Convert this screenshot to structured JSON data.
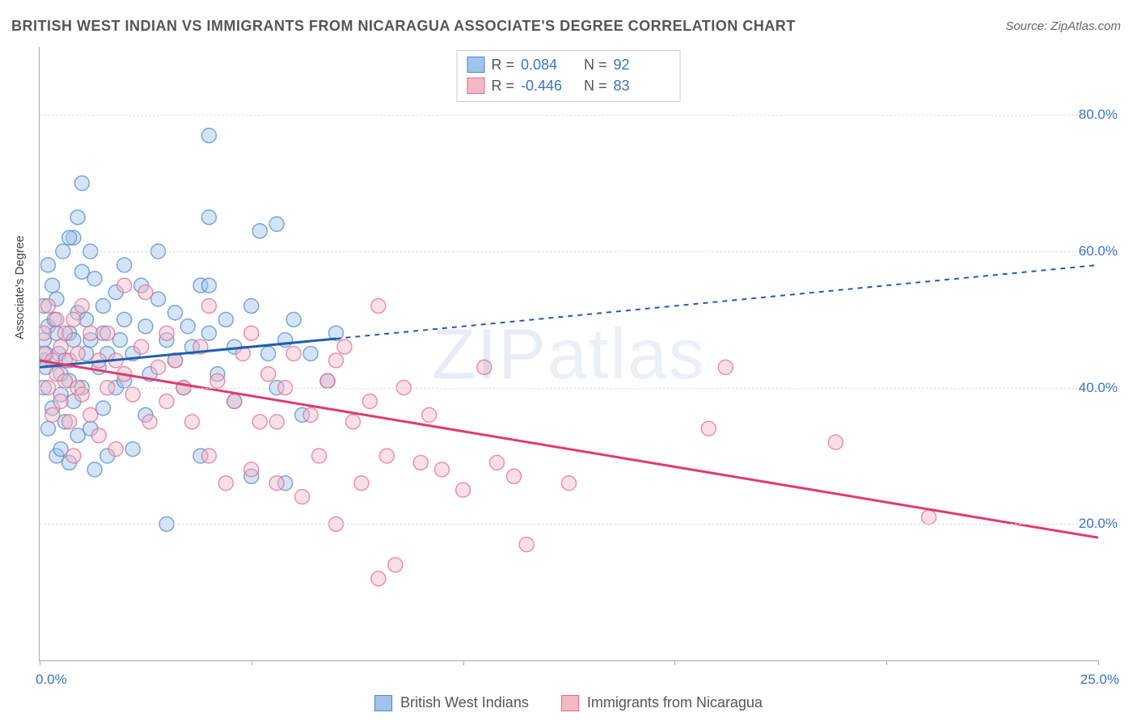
{
  "title": "BRITISH WEST INDIAN VS IMMIGRANTS FROM NICARAGUA ASSOCIATE'S DEGREE CORRELATION CHART",
  "source": "Source: ZipAtlas.com",
  "watermark": "ZIPatlas",
  "chart": {
    "type": "scatter",
    "ylabel": "Associate's Degree",
    "background_color": "#ffffff",
    "grid_color": "#dddddd",
    "axis_color": "#aaaaaa",
    "tick_label_color": "#3a74c4",
    "xlim": [
      0,
      25
    ],
    "ylim": [
      0,
      90
    ],
    "x_ticks": [
      0,
      5,
      10,
      15,
      20,
      25
    ],
    "x_tick_labels": [
      "0.0%",
      "25.0%"
    ],
    "y_ticks": [
      20,
      40,
      60,
      80
    ],
    "y_tick_labels": [
      "20.0%",
      "40.0%",
      "60.0%",
      "80.0%"
    ],
    "marker_radius": 9,
    "marker_opacity": 0.45,
    "trend_line_width": 3,
    "trend_dash_extrapolate": "6,6",
    "series": [
      {
        "name": "British West Indians",
        "fill": "#9ec4ea",
        "stroke": "#4f86c6",
        "line_color": "#1f5fb0",
        "r": 0.084,
        "r_label": "0.084",
        "n": 92,
        "trend": {
          "x1": 0,
          "y1": 43,
          "x2": 25,
          "y2": 58,
          "solid_until_x": 7
        },
        "points": [
          [
            0.1,
            47
          ],
          [
            0.1,
            44
          ],
          [
            0.1,
            52
          ],
          [
            0.1,
            40
          ],
          [
            0.2,
            49
          ],
          [
            0.2,
            34
          ],
          [
            0.2,
            58
          ],
          [
            0.15,
            45
          ],
          [
            0.15,
            43
          ],
          [
            0.3,
            37
          ],
          [
            0.3,
            55
          ],
          [
            0.35,
            50
          ],
          [
            0.4,
            48
          ],
          [
            0.4,
            53
          ],
          [
            0.4,
            30
          ],
          [
            0.45,
            45
          ],
          [
            0.5,
            31
          ],
          [
            0.5,
            42
          ],
          [
            0.5,
            39
          ],
          [
            0.55,
            60
          ],
          [
            0.6,
            35
          ],
          [
            0.6,
            44
          ],
          [
            0.7,
            48
          ],
          [
            0.7,
            41
          ],
          [
            0.7,
            29
          ],
          [
            0.8,
            47
          ],
          [
            0.8,
            62
          ],
          [
            0.8,
            38
          ],
          [
            0.9,
            51
          ],
          [
            0.9,
            33
          ],
          [
            1.0,
            40
          ],
          [
            1.0,
            70
          ],
          [
            1.0,
            57
          ],
          [
            1.1,
            50
          ],
          [
            1.1,
            45
          ],
          [
            1.2,
            60
          ],
          [
            1.2,
            34
          ],
          [
            1.3,
            56
          ],
          [
            1.3,
            28
          ],
          [
            1.4,
            43
          ],
          [
            1.5,
            52
          ],
          [
            1.5,
            48
          ],
          [
            1.5,
            37
          ],
          [
            1.6,
            45
          ],
          [
            1.6,
            30
          ],
          [
            1.8,
            54
          ],
          [
            1.8,
            40
          ],
          [
            1.9,
            47
          ],
          [
            2.0,
            58
          ],
          [
            2.0,
            41
          ],
          [
            2.0,
            50
          ],
          [
            2.2,
            31
          ],
          [
            2.2,
            45
          ],
          [
            2.4,
            55
          ],
          [
            2.5,
            49
          ],
          [
            2.5,
            36
          ],
          [
            2.6,
            42
          ],
          [
            2.8,
            53
          ],
          [
            2.8,
            60
          ],
          [
            3.0,
            20
          ],
          [
            3.0,
            47
          ],
          [
            3.2,
            44
          ],
          [
            3.2,
            51
          ],
          [
            3.4,
            40
          ],
          [
            3.5,
            49
          ],
          [
            3.6,
            46
          ],
          [
            3.8,
            55
          ],
          [
            3.8,
            30
          ],
          [
            4.0,
            77
          ],
          [
            4.0,
            65
          ],
          [
            4.0,
            48
          ],
          [
            4.0,
            55
          ],
          [
            4.2,
            42
          ],
          [
            4.4,
            50
          ],
          [
            4.6,
            38
          ],
          [
            4.6,
            46
          ],
          [
            5.0,
            52
          ],
          [
            5.0,
            27
          ],
          [
            5.2,
            63
          ],
          [
            5.4,
            45
          ],
          [
            5.6,
            40
          ],
          [
            5.8,
            47
          ],
          [
            5.8,
            26
          ],
          [
            5.6,
            64
          ],
          [
            6.0,
            50
          ],
          [
            6.2,
            36
          ],
          [
            6.4,
            45
          ],
          [
            6.8,
            41
          ],
          [
            7.0,
            48
          ],
          [
            0.7,
            62
          ],
          [
            0.9,
            65
          ],
          [
            1.2,
            47
          ]
        ]
      },
      {
        "name": "Immigrants from Nicaragua",
        "fill": "#f3b9c7",
        "stroke": "#e06a8a",
        "line_color": "#e23a6e",
        "r": -0.446,
        "r_label": "-0.446",
        "n": 83,
        "trend": {
          "x1": 0,
          "y1": 44,
          "x2": 25,
          "y2": 18,
          "solid_until_x": 25
        },
        "points": [
          [
            0.1,
            45
          ],
          [
            0.1,
            48
          ],
          [
            0.2,
            40
          ],
          [
            0.2,
            52
          ],
          [
            0.3,
            44
          ],
          [
            0.3,
            36
          ],
          [
            0.4,
            50
          ],
          [
            0.4,
            42
          ],
          [
            0.5,
            46
          ],
          [
            0.5,
            38
          ],
          [
            0.6,
            48
          ],
          [
            0.6,
            41
          ],
          [
            0.7,
            44
          ],
          [
            0.7,
            35
          ],
          [
            0.8,
            50
          ],
          [
            0.8,
            30
          ],
          [
            0.9,
            40
          ],
          [
            0.9,
            45
          ],
          [
            1.0,
            52
          ],
          [
            1.0,
            39
          ],
          [
            1.2,
            48
          ],
          [
            1.2,
            36
          ],
          [
            1.4,
            44
          ],
          [
            1.4,
            33
          ],
          [
            1.6,
            48
          ],
          [
            1.6,
            40
          ],
          [
            1.8,
            44
          ],
          [
            1.8,
            31
          ],
          [
            2.0,
            55
          ],
          [
            2.0,
            42
          ],
          [
            2.2,
            39
          ],
          [
            2.4,
            46
          ],
          [
            2.5,
            54
          ],
          [
            2.6,
            35
          ],
          [
            2.8,
            43
          ],
          [
            3.0,
            48
          ],
          [
            3.0,
            38
          ],
          [
            3.2,
            44
          ],
          [
            3.4,
            40
          ],
          [
            3.6,
            35
          ],
          [
            3.8,
            46
          ],
          [
            4.0,
            52
          ],
          [
            4.0,
            30
          ],
          [
            4.2,
            41
          ],
          [
            4.4,
            26
          ],
          [
            4.6,
            38
          ],
          [
            4.8,
            45
          ],
          [
            5.0,
            28
          ],
          [
            5.0,
            48
          ],
          [
            5.2,
            35
          ],
          [
            5.4,
            42
          ],
          [
            5.6,
            26
          ],
          [
            5.6,
            35
          ],
          [
            5.8,
            40
          ],
          [
            6.0,
            45
          ],
          [
            6.2,
            24
          ],
          [
            6.4,
            36
          ],
          [
            6.6,
            30
          ],
          [
            6.8,
            41
          ],
          [
            7.0,
            20
          ],
          [
            7.2,
            46
          ],
          [
            7.4,
            35
          ],
          [
            7.6,
            26
          ],
          [
            7.8,
            38
          ],
          [
            8.0,
            52
          ],
          [
            8.2,
            30
          ],
          [
            8.4,
            14
          ],
          [
            8.6,
            40
          ],
          [
            9.0,
            29
          ],
          [
            9.2,
            36
          ],
          [
            9.5,
            28
          ],
          [
            10.0,
            25
          ],
          [
            10.5,
            43
          ],
          [
            10.8,
            29
          ],
          [
            11.2,
            27
          ],
          [
            11.5,
            17
          ],
          [
            12.5,
            26
          ],
          [
            15.8,
            34
          ],
          [
            16.2,
            43
          ],
          [
            18.8,
            32
          ],
          [
            21.0,
            21
          ],
          [
            8.0,
            12
          ],
          [
            7.0,
            44
          ]
        ]
      }
    ]
  }
}
